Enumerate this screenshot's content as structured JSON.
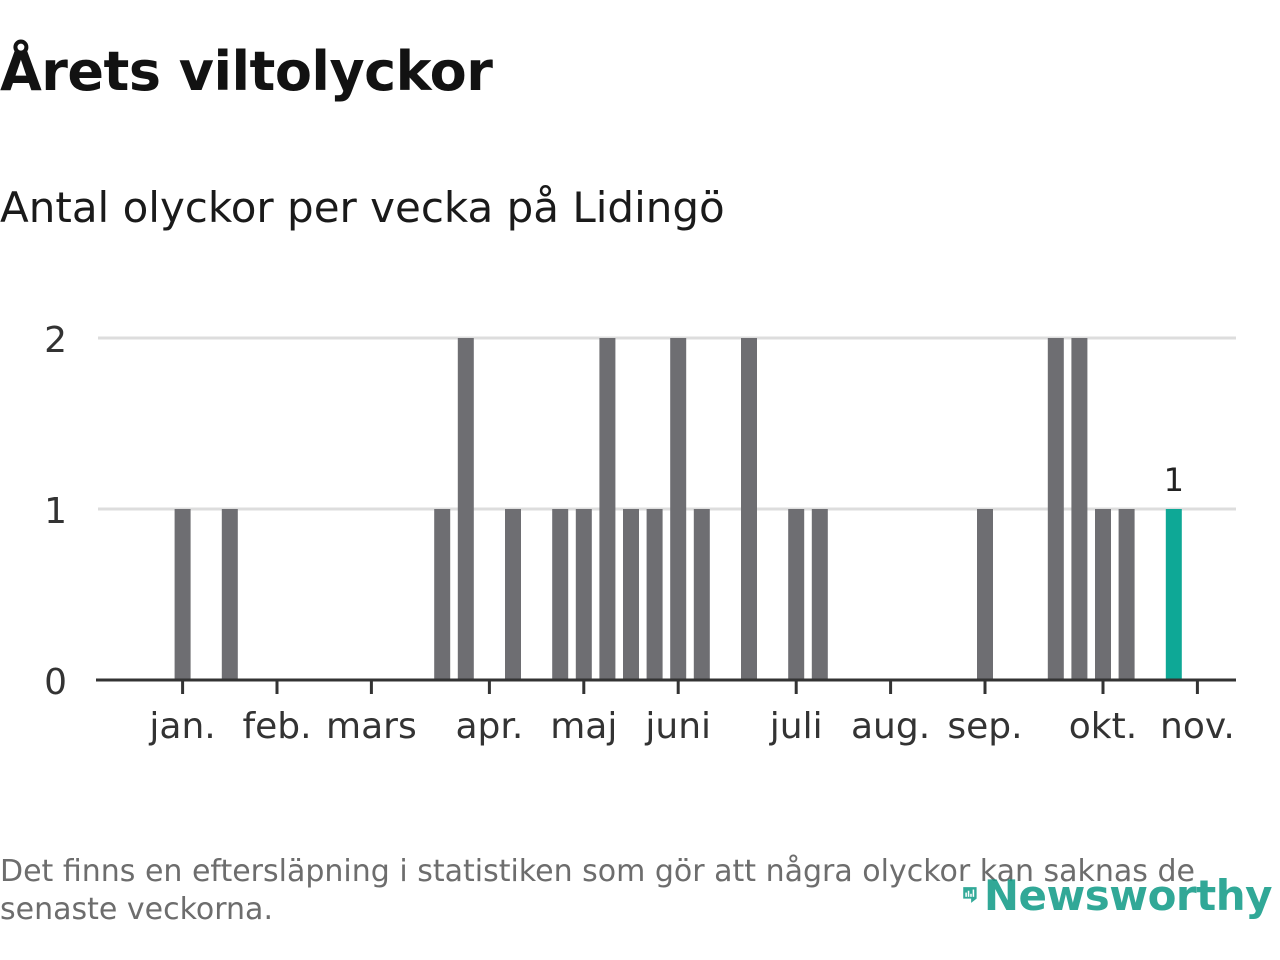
{
  "title": "Årets viltolyckor",
  "subtitle": "Antal olyckor per vecka på Lidingö",
  "footnote": "Det finns en eftersläpning i statistiken som gör att några olyckor kan saknas de senaste veckorna.",
  "logo": {
    "text": "Newsworthy",
    "icon": "newsworthy-logo-icon",
    "color": "#0e9a86"
  },
  "chart_data": {
    "type": "bar",
    "title": "Årets viltolyckor",
    "subtitle": "Antal olyckor per vecka på Lidingö",
    "xlabel": "",
    "ylabel": "",
    "ylim": [
      0,
      2
    ],
    "yticks": [
      "0",
      "1",
      "2"
    ],
    "grid": true,
    "legend": "none",
    "colors": {
      "bar": "#6e6e72",
      "highlight": "#0ea896",
      "grid": "#dddddd",
      "axis": "#333333"
    },
    "month_ticks": [
      {
        "label": "jan.",
        "week": 2
      },
      {
        "label": "feb.",
        "week": 6
      },
      {
        "label": "mars",
        "week": 10
      },
      {
        "label": "apr.",
        "week": 15
      },
      {
        "label": "maj",
        "week": 19
      },
      {
        "label": "juni",
        "week": 23
      },
      {
        "label": "juli",
        "week": 28
      },
      {
        "label": "aug.",
        "week": 32
      },
      {
        "label": "sep.",
        "week": 36
      },
      {
        "label": "okt.",
        "week": 41
      },
      {
        "label": "nov.",
        "week": 45
      }
    ],
    "weeks": [
      1,
      2,
      3,
      4,
      5,
      6,
      7,
      8,
      9,
      10,
      11,
      12,
      13,
      14,
      15,
      16,
      17,
      18,
      19,
      20,
      21,
      22,
      23,
      24,
      25,
      26,
      27,
      28,
      29,
      30,
      31,
      32,
      33,
      34,
      35,
      36,
      37,
      38,
      39,
      40,
      41,
      42,
      43,
      44,
      45
    ],
    "values": [
      0,
      1,
      0,
      1,
      0,
      0,
      0,
      0,
      0,
      0,
      0,
      0,
      1,
      2,
      0,
      1,
      0,
      1,
      1,
      2,
      1,
      1,
      2,
      1,
      0,
      2,
      0,
      1,
      1,
      0,
      0,
      0,
      0,
      0,
      0,
      1,
      0,
      0,
      2,
      2,
      1,
      1,
      0,
      1,
      0
    ],
    "highlight": {
      "week": 44,
      "value": 1,
      "label": "1"
    }
  }
}
